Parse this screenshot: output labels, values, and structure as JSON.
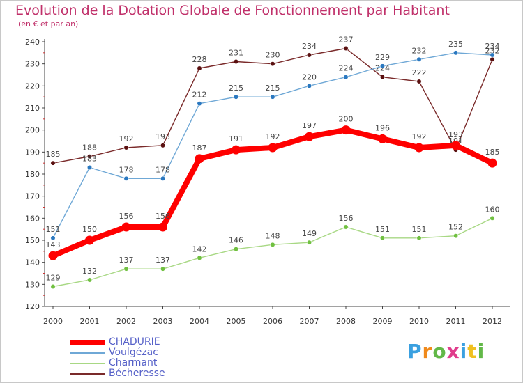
{
  "chart_data": {
    "type": "line",
    "title": "Evolution de la Dotation Globale de Fonctionnement par Habitant",
    "subtitle": "(en € et par an)",
    "xlabel": "",
    "ylabel": "",
    "ylim": [
      120,
      240
    ],
    "yticks": [
      120,
      130,
      140,
      150,
      160,
      170,
      180,
      190,
      200,
      210,
      220,
      230,
      240
    ],
    "categories": [
      "2000",
      "2001",
      "2002",
      "2003",
      "2004",
      "2005",
      "2006",
      "2007",
      "2008",
      "2009",
      "2010",
      "2011",
      "2012"
    ],
    "series": [
      {
        "name": "Bécheresse",
        "color": "#7a2a2a",
        "marker": "#5a1010",
        "values": [
          185,
          188,
          192,
          193,
          228,
          231,
          230,
          234,
          237,
          224,
          222,
          191,
          232
        ]
      },
      {
        "name": "Voulgézac",
        "color": "#6fa8d6",
        "marker": "#2a78c0",
        "values": [
          151,
          183,
          178,
          178,
          212,
          215,
          215,
          220,
          224,
          229,
          232,
          235,
          234
        ]
      },
      {
        "name": "Charmant",
        "color": "#a8d884",
        "marker": "#70c040",
        "values": [
          129,
          132,
          137,
          137,
          142,
          146,
          148,
          149,
          156,
          151,
          151,
          152,
          160
        ]
      },
      {
        "name": "CHADURIE",
        "color": "#ff0000",
        "marker": "#ff0000",
        "values": [
          143,
          150,
          156,
          156,
          187,
          191,
          192,
          197,
          200,
          196,
          192,
          193,
          185
        ]
      }
    ],
    "legend": [
      "CHADURIE",
      "Voulgézac",
      "Charmant",
      "Bécheresse"
    ],
    "legend_position": "bottom-left",
    "grid": false
  },
  "logo": {
    "p1": "P",
    "p2": "r",
    "p3": "o",
    "p4": "x",
    "p5": "i",
    "p6": "t",
    "p7": "i"
  }
}
